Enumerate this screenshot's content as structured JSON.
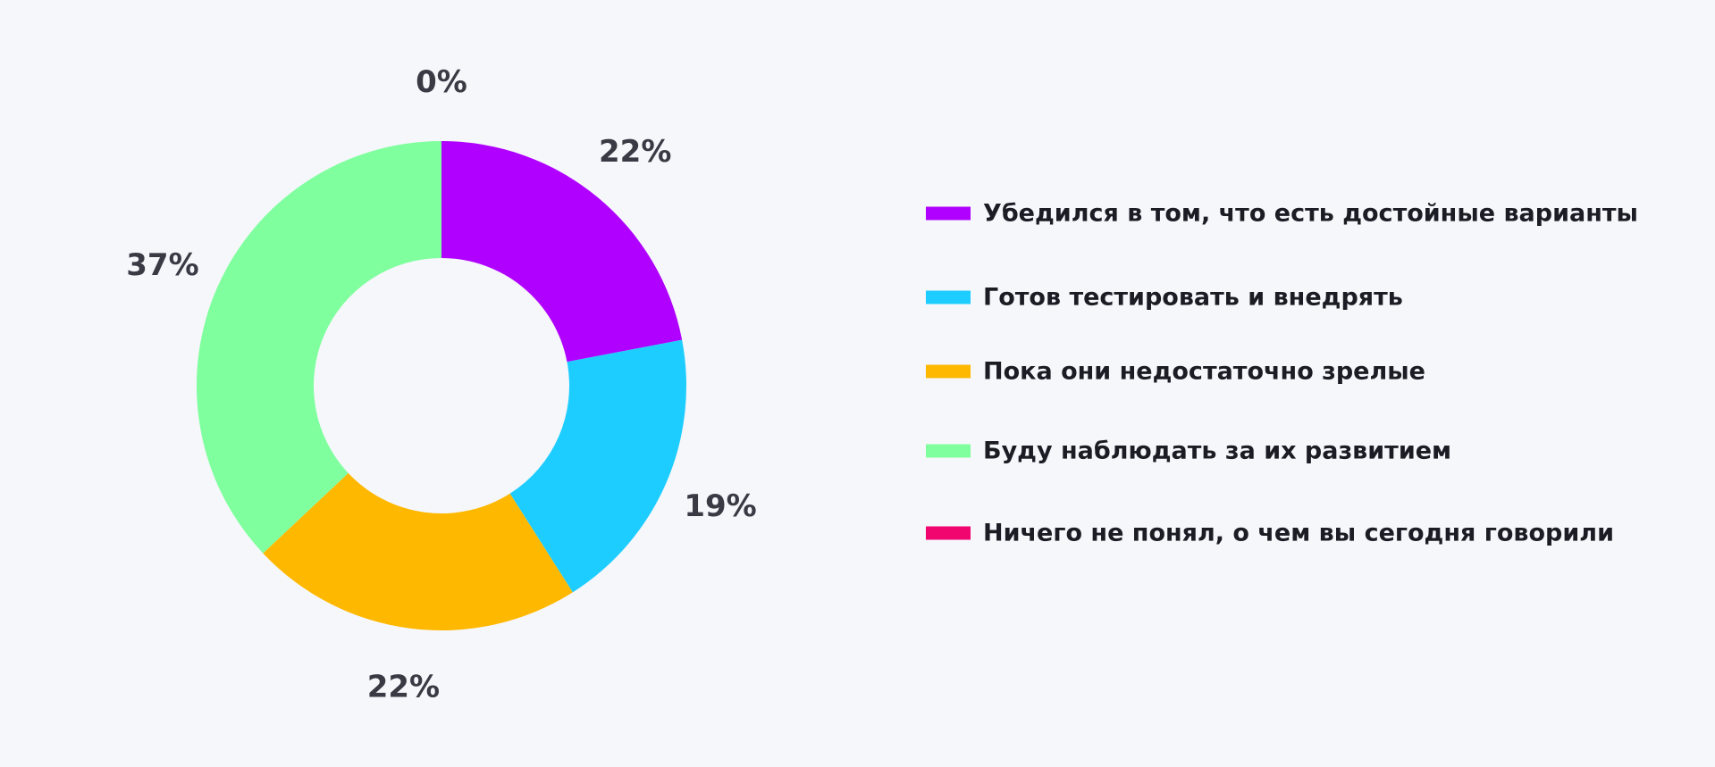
{
  "chart_data": {
    "type": "pie",
    "donut": true,
    "categories": [
      "Убедился в том, что есть достойные варианты",
      "Готов тестировать и внедрять",
      "Пока они недостаточно зрелые",
      "Буду наблюдать за их развитием",
      "Ничего не понял, о чем вы сегодня говорили"
    ],
    "values": [
      22,
      19,
      22,
      37,
      0
    ],
    "labels": [
      "22%",
      "19%",
      "22%",
      "37%",
      "0%"
    ],
    "colors": [
      "#b000ff",
      "#1ecdff",
      "#ffb800",
      "#80ff9e",
      "#f0066e"
    ],
    "title": "",
    "legend_position": "right"
  }
}
